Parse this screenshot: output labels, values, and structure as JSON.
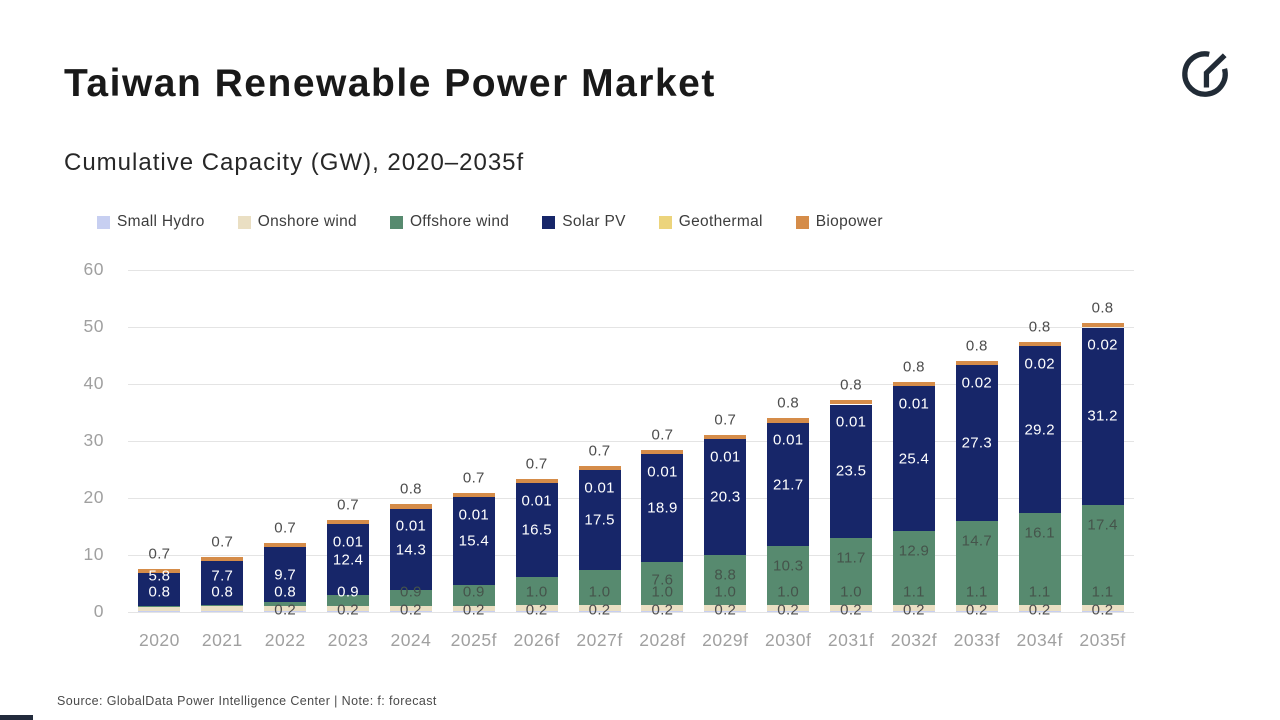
{
  "header": {
    "title": "Taiwan Renewable Power Market",
    "subtitle": "Cumulative Capacity (GW), 2020–2035f",
    "logo": "globaldata-monogram"
  },
  "footer": {
    "source_note": "Source: GlobalData Power Intelligence Center | Note: f: forecast"
  },
  "colors": {
    "small_hydro": "#c7cff1",
    "onshore_wind": "#eadfc3",
    "offshore_wind": "#578a6f",
    "solar_pv": "#172669",
    "geothermal": "#ecd47c",
    "biopower": "#d58c49",
    "gridline": "#e4e4e4",
    "axis_text": "#a0a0a0",
    "label_dark": "#4d4d4d",
    "label_on_green": "#45544b"
  },
  "chart_data": {
    "type": "bar",
    "stacked": true,
    "title": "Taiwan Renewable Power Market",
    "subtitle": "Cumulative Capacity (GW), 2020–2035f",
    "ylabel": "Cumulative Capacity (GW)",
    "ylim": [
      0,
      60
    ],
    "yticks": [
      0,
      10,
      20,
      30,
      40,
      50,
      60
    ],
    "grid": true,
    "legend_position": "top",
    "note": "f: forecast. Unlabeled segment values (offshore wind 2020–2027, geothermal 2020–2022, small hydro 2020–2021) estimated from bar heights.",
    "categories": [
      "2020",
      "2021",
      "2022",
      "2023",
      "2024",
      "2025f",
      "2026f",
      "2027f",
      "2028f",
      "2029f",
      "2030f",
      "2031f",
      "2032f",
      "2033f",
      "2034f",
      "2035f"
    ],
    "series": [
      {
        "name": "Small Hydro",
        "slug": "small-hydro",
        "color": "#c7cff1",
        "values": [
          0.2,
          0.2,
          0.2,
          0.2,
          0.2,
          0.2,
          0.2,
          0.2,
          0.2,
          0.2,
          0.2,
          0.2,
          0.2,
          0.2,
          0.2,
          0.2
        ],
        "labels": [
          null,
          null,
          "0.2",
          "0.2",
          "0.2",
          "0.2",
          "0.2",
          "0.2",
          "0.2",
          "0.2",
          "0.2",
          "0.2",
          "0.2",
          "0.2",
          "0.2",
          "0.2"
        ]
      },
      {
        "name": "Onshore wind",
        "slug": "onshore-wind",
        "color": "#eadfc3",
        "values": [
          0.8,
          0.8,
          0.8,
          0.9,
          0.9,
          0.9,
          1.0,
          1.0,
          1.0,
          1.0,
          1.0,
          1.0,
          1.1,
          1.1,
          1.1,
          1.1
        ],
        "labels": [
          "0.8",
          "0.8",
          "0.8",
          "0.9",
          "0.9",
          "0.9",
          "1.0",
          "1.0",
          "1.0",
          "1.0",
          "1.0",
          "1.0",
          "1.1",
          "1.1",
          "1.1",
          "1.1"
        ]
      },
      {
        "name": "Offshore wind",
        "slug": "offshore-wind",
        "color": "#578a6f",
        "values": [
          0.1,
          0.2,
          0.7,
          1.9,
          2.7,
          3.6,
          4.9,
          6.2,
          7.6,
          8.8,
          10.3,
          11.7,
          12.9,
          14.7,
          16.1,
          17.4
        ],
        "labels": [
          null,
          null,
          null,
          null,
          null,
          null,
          null,
          null,
          "7.6",
          "8.8",
          "10.3",
          "11.7",
          "12.9",
          "14.7",
          "16.1",
          "17.4"
        ]
      },
      {
        "name": "Solar PV",
        "slug": "solar-pv",
        "color": "#172669",
        "values": [
          5.8,
          7.7,
          9.7,
          12.4,
          14.3,
          15.4,
          16.5,
          17.5,
          18.9,
          20.3,
          21.7,
          23.5,
          25.4,
          27.3,
          29.2,
          31.2
        ],
        "labels": [
          "5.8",
          "7.7",
          "9.7",
          "12.4",
          "14.3",
          "15.4",
          "16.5",
          "17.5",
          "18.9",
          "20.3",
          "21.7",
          "23.5",
          "25.4",
          "27.3",
          "29.2",
          "31.2"
        ]
      },
      {
        "name": "Geothermal",
        "slug": "geothermal",
        "color": "#ecd47c",
        "values": [
          0.01,
          0.01,
          0.01,
          0.01,
          0.01,
          0.01,
          0.01,
          0.01,
          0.01,
          0.01,
          0.01,
          0.01,
          0.01,
          0.02,
          0.02,
          0.02
        ],
        "labels": [
          null,
          null,
          null,
          "0.01",
          "0.01",
          "0.01",
          "0.01",
          "0.01",
          "0.01",
          "0.01",
          "0.01",
          "0.01",
          "0.01",
          "0.02",
          "0.02",
          "0.02"
        ]
      },
      {
        "name": "Biopower",
        "slug": "biopower",
        "color": "#d58c49",
        "values": [
          0.7,
          0.7,
          0.7,
          0.7,
          0.8,
          0.7,
          0.7,
          0.7,
          0.7,
          0.7,
          0.8,
          0.8,
          0.8,
          0.8,
          0.8,
          0.8
        ],
        "labels": [
          "0.7",
          "0.7",
          "0.7",
          "0.7",
          "0.8",
          "0.7",
          "0.7",
          "0.7",
          "0.7",
          "0.7",
          "0.8",
          "0.8",
          "0.8",
          "0.8",
          "0.8",
          "0.8"
        ]
      }
    ]
  }
}
